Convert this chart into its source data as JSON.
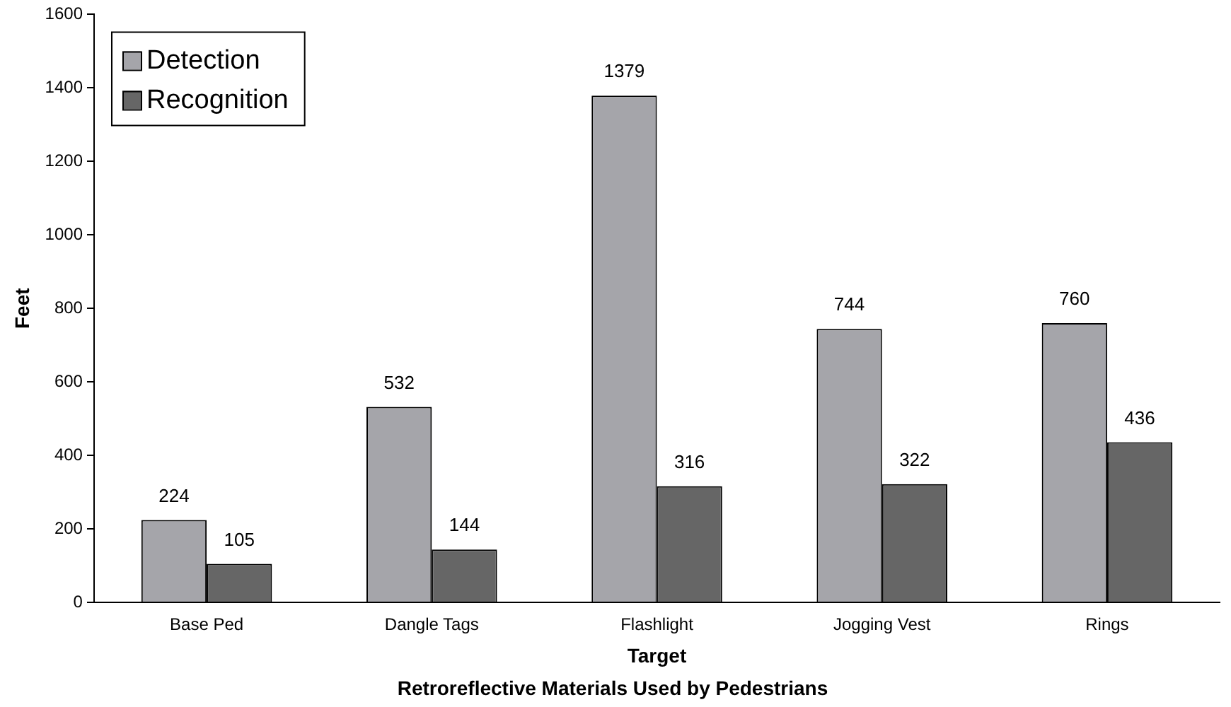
{
  "chart_data": {
    "type": "bar",
    "title": "Retroreflective Materials Used by Pedestrians",
    "xlabel": "Target",
    "ylabel": "Feet",
    "categories": [
      "Base Ped",
      "Dangle Tags",
      "Flashlight",
      "Jogging Vest",
      "Rings"
    ],
    "series": [
      {
        "name": "Detection",
        "color": "#a5a5aa",
        "values": [
          224,
          532,
          1379,
          744,
          760
        ]
      },
      {
        "name": "Recognition",
        "color": "#666666",
        "values": [
          105,
          144,
          316,
          322,
          436
        ]
      }
    ],
    "ylim": [
      0,
      1600
    ],
    "yticks": [
      0,
      200,
      400,
      600,
      800,
      1000,
      1200,
      1400,
      1600
    ],
    "grid": false,
    "legend": "top left",
    "data_labels": true
  }
}
